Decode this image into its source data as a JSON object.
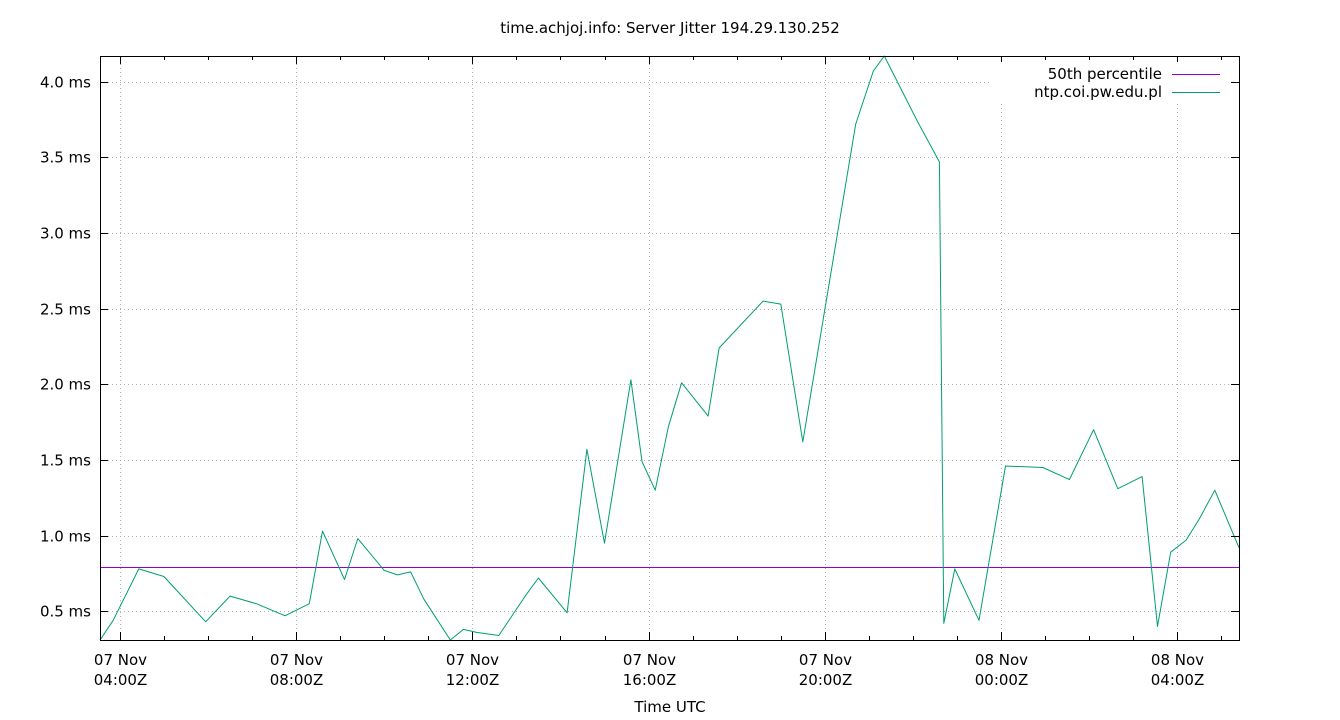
{
  "chart_data": {
    "type": "line",
    "title": "time.achjoj.info: Server Jitter 194.29.130.252",
    "xlabel": "Time UTC",
    "ylabel": "",
    "x_unit": "hours since 07 Nov 04:00Z",
    "xlim": [
      -0.45,
      25.4
    ],
    "ylim": [
      0.31,
      4.17
    ],
    "grid": true,
    "legend_position": "top-right",
    "y_ticks": [
      {
        "value": 0.5,
        "label": "0.5 ms"
      },
      {
        "value": 1.0,
        "label": "1.0 ms"
      },
      {
        "value": 1.5,
        "label": "1.5 ms"
      },
      {
        "value": 2.0,
        "label": "2.0 ms"
      },
      {
        "value": 2.5,
        "label": "2.5 ms"
      },
      {
        "value": 3.0,
        "label": "3.0 ms"
      },
      {
        "value": 3.5,
        "label": "3.5 ms"
      },
      {
        "value": 4.0,
        "label": "4.0 ms"
      }
    ],
    "x_ticks": [
      {
        "value": 0,
        "line1": "07 Nov",
        "line2": "04:00Z"
      },
      {
        "value": 4,
        "line1": "07 Nov",
        "line2": "08:00Z"
      },
      {
        "value": 8,
        "line1": "07 Nov",
        "line2": "12:00Z"
      },
      {
        "value": 12,
        "line1": "07 Nov",
        "line2": "16:00Z"
      },
      {
        "value": 16,
        "line1": "07 Nov",
        "line2": "20:00Z"
      },
      {
        "value": 20,
        "line1": "08 Nov",
        "line2": "00:00Z"
      },
      {
        "value": 24,
        "line1": "08 Nov",
        "line2": "04:00Z"
      }
    ],
    "series": [
      {
        "name": "50th percentile",
        "color": "#9400d3",
        "kind": "hline",
        "value": 0.79
      },
      {
        "name": "ntp.coi.pw.edu.pl",
        "color": "#009e73",
        "kind": "line",
        "x": [
          -0.45,
          -0.15,
          0.43,
          1.0,
          1.95,
          2.5,
          3.1,
          3.75,
          4.3,
          4.6,
          5.1,
          5.4,
          6.0,
          6.3,
          6.6,
          6.9,
          7.5,
          7.8,
          8.1,
          8.6,
          9.2,
          9.5,
          10.15,
          10.6,
          11.0,
          11.6,
          11.85,
          12.15,
          12.45,
          12.75,
          13.35,
          13.6,
          14.6,
          15.0,
          15.5,
          16.7,
          17.1,
          17.35,
          18.1,
          18.6,
          18.7,
          18.95,
          19.5,
          20.1,
          20.95,
          21.55,
          22.1,
          22.65,
          23.2,
          23.55,
          23.85,
          24.2,
          24.5,
          24.85,
          25.4
        ],
        "y": [
          0.31,
          0.44,
          0.78,
          0.73,
          0.43,
          0.6,
          0.55,
          0.47,
          0.55,
          1.03,
          0.71,
          0.98,
          0.77,
          0.74,
          0.76,
          0.58,
          0.31,
          0.38,
          0.36,
          0.34,
          0.6,
          0.72,
          0.49,
          1.57,
          0.95,
          2.03,
          1.49,
          1.3,
          1.72,
          2.01,
          1.79,
          2.24,
          2.55,
          2.53,
          1.62,
          3.72,
          4.07,
          4.17,
          3.74,
          3.47,
          0.42,
          0.78,
          0.44,
          1.46,
          1.45,
          1.37,
          1.7,
          1.31,
          1.39,
          0.4,
          0.89,
          0.97,
          1.11,
          1.3,
          0.92
        ]
      }
    ]
  }
}
